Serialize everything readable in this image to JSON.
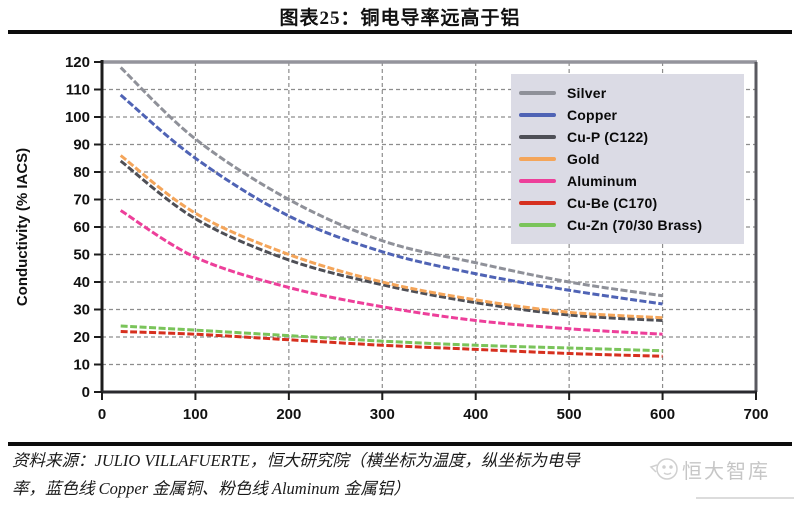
{
  "header": {
    "title": "图表25：铜电导率远高于铝"
  },
  "chart_data": {
    "type": "line",
    "title": "",
    "xlabel": "",
    "ylabel": "Conductivity (% IACS)",
    "xlim": [
      0,
      700
    ],
    "ylim": [
      0,
      120
    ],
    "xticks": [
      0,
      100,
      200,
      300,
      400,
      500,
      600,
      700
    ],
    "yticks": [
      0,
      10,
      20,
      30,
      40,
      50,
      60,
      70,
      80,
      90,
      100,
      110,
      120
    ],
    "grid": true,
    "grid_style": "dashed",
    "legend_position": "top-right",
    "x": [
      20,
      100,
      200,
      300,
      400,
      500,
      600
    ],
    "series": [
      {
        "name": "Silver",
        "color": "#8f9199",
        "values": [
          118,
          92,
          70,
          55,
          47,
          40,
          35
        ]
      },
      {
        "name": "Copper",
        "color": "#4f63b5",
        "values": [
          108,
          85,
          64,
          51,
          43,
          37,
          32
        ]
      },
      {
        "name": "Cu-P (C122)",
        "color": "#4e4f56",
        "values": [
          84,
          63,
          48,
          39,
          32.5,
          28,
          26
        ]
      },
      {
        "name": "Gold",
        "color": "#f4a55a",
        "values": [
          86,
          65,
          50,
          40,
          33.5,
          29,
          27
        ]
      },
      {
        "name": "Aluminum",
        "color": "#ed3f9a",
        "values": [
          66,
          49,
          38,
          31,
          26,
          23,
          21
        ]
      },
      {
        "name": "Cu-Be (C170)",
        "color": "#d6301f",
        "values": [
          22,
          21,
          19,
          17,
          15.5,
          14,
          13
        ]
      },
      {
        "name": "Cu-Zn (70/30 Brass)",
        "color": "#7ac45a",
        "values": [
          24,
          22.5,
          20.5,
          18.5,
          17,
          16,
          15
        ]
      }
    ]
  },
  "footer": {
    "lines": [
      "资料来源：JULIO VILLAFUERTE，恒大研究院（横坐标为温度，纵坐标为电导",
      "率，蓝色线 Copper 金属铜、粉色线 Aluminum 金属铝）"
    ],
    "watermark": "恒大智库"
  },
  "colors": {
    "grid": "#8d8d8d",
    "axis": "#1c1c1c",
    "frame_top": "#94949c",
    "frame_right": "#5a5a60",
    "legend_bg": "#dbdbe5",
    "divider": "#0d0d0d"
  }
}
